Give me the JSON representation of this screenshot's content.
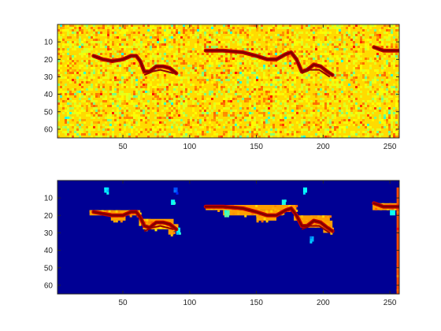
{
  "chart_data": [
    {
      "type": "heatmap",
      "colormap": "jet",
      "background_level": "yellow",
      "grid": false,
      "xlim": [
        1,
        257
      ],
      "ylim": [
        65,
        0
      ],
      "xticks": [
        50,
        100,
        150,
        200,
        250
      ],
      "yticks": [
        10,
        20,
        30,
        40,
        50,
        60
      ],
      "xtick_labels": [
        "50",
        "100",
        "150",
        "200",
        "250"
      ],
      "ytick_labels": [
        "10",
        "20",
        "30",
        "40",
        "50",
        "60"
      ],
      "track_points": [
        {
          "x": 28,
          "y": 18
        },
        {
          "x": 35,
          "y": 20
        },
        {
          "x": 42,
          "y": 21
        },
        {
          "x": 50,
          "y": 20
        },
        {
          "x": 56,
          "y": 18
        },
        {
          "x": 60,
          "y": 18
        },
        {
          "x": 63,
          "y": 21
        },
        {
          "x": 66,
          "y": 27
        },
        {
          "x": 70,
          "y": 27
        },
        {
          "x": 75,
          "y": 24
        },
        {
          "x": 80,
          "y": 24
        },
        {
          "x": 85,
          "y": 25
        },
        {
          "x": 90,
          "y": 28
        },
        {
          "x": 112,
          "y": 15
        },
        {
          "x": 125,
          "y": 15
        },
        {
          "x": 140,
          "y": 16
        },
        {
          "x": 150,
          "y": 18
        },
        {
          "x": 158,
          "y": 20
        },
        {
          "x": 165,
          "y": 20
        },
        {
          "x": 172,
          "y": 17
        },
        {
          "x": 176,
          "y": 16
        },
        {
          "x": 180,
          "y": 20
        },
        {
          "x": 184,
          "y": 27
        },
        {
          "x": 188,
          "y": 26
        },
        {
          "x": 193,
          "y": 23
        },
        {
          "x": 198,
          "y": 24
        },
        {
          "x": 203,
          "y": 27
        },
        {
          "x": 207,
          "y": 29
        },
        {
          "x": 238,
          "y": 13
        },
        {
          "x": 245,
          "y": 15
        },
        {
          "x": 252,
          "y": 15
        },
        {
          "x": 257,
          "y": 15
        }
      ]
    },
    {
      "type": "heatmap",
      "colormap": "jet",
      "background_level": "dark-blue",
      "grid": false,
      "xlim": [
        1,
        257
      ],
      "ylim": [
        65,
        0
      ],
      "xticks": [
        50,
        100,
        150,
        200,
        250
      ],
      "yticks": [
        10,
        20,
        30,
        40,
        50,
        60
      ],
      "xtick_labels": [
        "50",
        "100",
        "150",
        "200",
        "250"
      ],
      "ytick_labels": [
        "10",
        "20",
        "30",
        "40",
        "50",
        "60"
      ],
      "regions": [
        {
          "x0": 25,
          "x1": 63,
          "y0": 17,
          "y1": 20,
          "level": 0.72
        },
        {
          "x0": 41,
          "x1": 52,
          "y0": 20,
          "y1": 23,
          "level": 0.72
        },
        {
          "x0": 62,
          "x1": 88,
          "y0": 22,
          "y1": 25,
          "level": 0.72
        },
        {
          "x0": 65,
          "x1": 91,
          "y0": 25,
          "y1": 28,
          "level": 0.7
        },
        {
          "x0": 84,
          "x1": 88,
          "y0": 28,
          "y1": 31,
          "level": 0.72
        },
        {
          "x0": 112,
          "x1": 180,
          "y0": 14,
          "y1": 17,
          "level": 0.72
        },
        {
          "x0": 125,
          "x1": 170,
          "y0": 17,
          "y1": 20,
          "level": 0.72
        },
        {
          "x0": 150,
          "x1": 165,
          "y0": 20,
          "y1": 23,
          "level": 0.72
        },
        {
          "x0": 178,
          "x1": 205,
          "y0": 20,
          "y1": 23,
          "level": 0.72
        },
        {
          "x0": 183,
          "x1": 207,
          "y0": 23,
          "y1": 27,
          "level": 0.72
        },
        {
          "x0": 200,
          "x1": 208,
          "y0": 27,
          "y1": 30,
          "level": 0.72
        },
        {
          "x0": 237,
          "x1": 258,
          "y0": 13,
          "y1": 17,
          "level": 0.72
        },
        {
          "x0": 86,
          "x1": 89,
          "y0": 11,
          "y1": 14,
          "level": 0.38
        },
        {
          "x0": 36,
          "x1": 39,
          "y0": 4,
          "y1": 7,
          "level": 0.36
        },
        {
          "x0": 88,
          "x1": 91,
          "y0": 4,
          "y1": 7,
          "level": 0.2
        },
        {
          "x0": 169,
          "x1": 172,
          "y0": 11,
          "y1": 14,
          "level": 0.4
        },
        {
          "x0": 185,
          "x1": 188,
          "y0": 4,
          "y1": 7,
          "level": 0.38
        },
        {
          "x0": 90,
          "x1": 93,
          "y0": 27,
          "y1": 30,
          "level": 0.38
        },
        {
          "x0": 190,
          "x1": 193,
          "y0": 32,
          "y1": 35,
          "level": 0.3
        },
        {
          "x0": 126,
          "x1": 130,
          "y0": 17,
          "y1": 20,
          "level": 0.45
        },
        {
          "x0": 250,
          "x1": 254,
          "y0": 17,
          "y1": 20,
          "level": 0.38
        },
        {
          "x0": 255,
          "x1": 258,
          "y0": 4,
          "y1": 65,
          "level": 0.8
        }
      ],
      "track_points": [
        {
          "x": 28,
          "y": 18
        },
        {
          "x": 35,
          "y": 19
        },
        {
          "x": 42,
          "y": 20
        },
        {
          "x": 50,
          "y": 20
        },
        {
          "x": 56,
          "y": 18
        },
        {
          "x": 60,
          "y": 18
        },
        {
          "x": 63,
          "y": 21
        },
        {
          "x": 66,
          "y": 26
        },
        {
          "x": 70,
          "y": 27
        },
        {
          "x": 75,
          "y": 24
        },
        {
          "x": 80,
          "y": 24
        },
        {
          "x": 85,
          "y": 25
        },
        {
          "x": 90,
          "y": 28
        },
        {
          "x": 112,
          "y": 15
        },
        {
          "x": 125,
          "y": 15
        },
        {
          "x": 140,
          "y": 16
        },
        {
          "x": 150,
          "y": 18
        },
        {
          "x": 158,
          "y": 20
        },
        {
          "x": 165,
          "y": 20
        },
        {
          "x": 172,
          "y": 17
        },
        {
          "x": 176,
          "y": 16
        },
        {
          "x": 180,
          "y": 20
        },
        {
          "x": 184,
          "y": 26
        },
        {
          "x": 188,
          "y": 26
        },
        {
          "x": 193,
          "y": 23
        },
        {
          "x": 198,
          "y": 24
        },
        {
          "x": 203,
          "y": 27
        },
        {
          "x": 207,
          "y": 29
        },
        {
          "x": 238,
          "y": 13
        },
        {
          "x": 245,
          "y": 15
        },
        {
          "x": 252,
          "y": 15
        },
        {
          "x": 257,
          "y": 15
        }
      ]
    }
  ]
}
